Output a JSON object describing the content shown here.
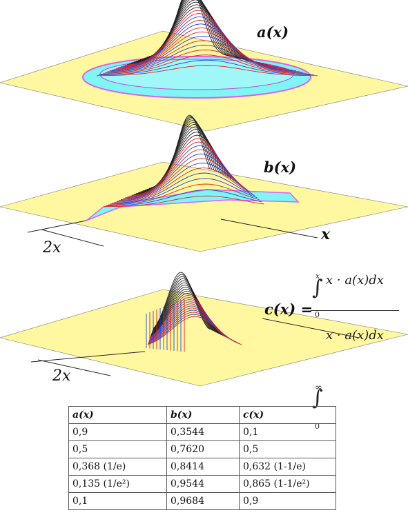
{
  "labels": {
    "a": "a(x)",
    "b": "b(x)",
    "c": "c(x)",
    "x_axis": "x",
    "width_1": "2x",
    "width_2": "2x",
    "eq": "c(x) =",
    "numerator": "x · a(x)dx",
    "denominator": "x · a(x)dx",
    "num_upper": "x",
    "num_lower": "0",
    "den_upper": "∞",
    "den_lower": "0"
  },
  "table": {
    "headers": [
      "a(x)",
      "b(x)",
      "c(x)"
    ],
    "rows": [
      [
        "0,9",
        "0,3544",
        "0,1"
      ],
      [
        "0,5",
        "0,7620",
        "0,5"
      ],
      [
        "0,368 (1/e)",
        "0,8414",
        "0,632 (1-1/e)"
      ],
      [
        "0,135 (1/e²)",
        "0,9544",
        "0,865 (1-1/e²)"
      ],
      [
        "0,1",
        "0,9684",
        "0,9"
      ]
    ]
  },
  "colors": {
    "plane": "#fff8a0",
    "ring_cyan": "#7ff5f5",
    "ring_magenta": "#e060e8",
    "curves_dark": "#222222",
    "curves_red": "#e02020",
    "curves_blue": "#2040e0"
  }
}
